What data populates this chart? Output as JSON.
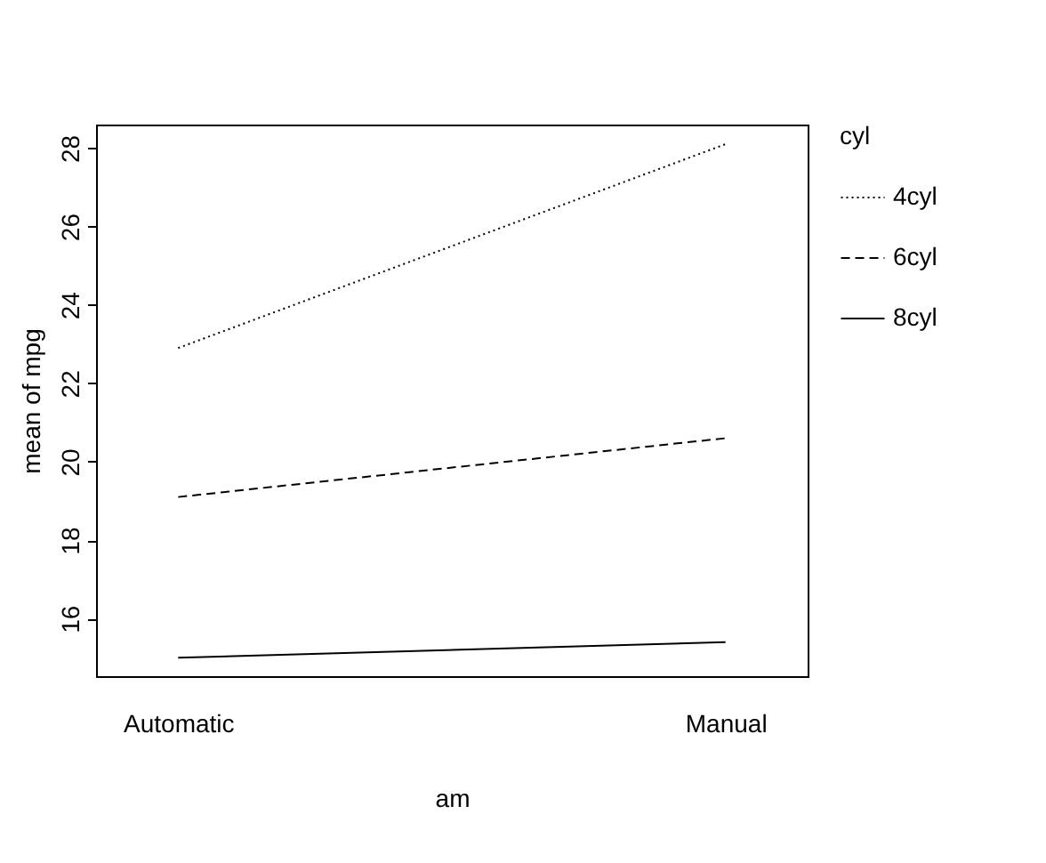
{
  "chart_data": {
    "type": "line",
    "xlabel": "am",
    "ylabel": "mean of  mpg",
    "legend_title": "cyl",
    "categories": [
      "Automatic",
      "Manual"
    ],
    "series": [
      {
        "name": "4cyl",
        "color": "#000000",
        "line_style": "dotted",
        "values": [
          22.9,
          28.1
        ]
      },
      {
        "name": "6cyl",
        "color": "#000000",
        "line_style": "dashed",
        "values": [
          19.1,
          20.6
        ]
      },
      {
        "name": "8cyl",
        "color": "#000000",
        "line_style": "solid",
        "values": [
          15.0,
          15.4
        ]
      }
    ],
    "ylim": [
      14.53,
      28.6
    ],
    "yticks": [
      16,
      18,
      20,
      22,
      24,
      26,
      28
    ],
    "grid": false,
    "legend": "right",
    "marker": "none"
  }
}
